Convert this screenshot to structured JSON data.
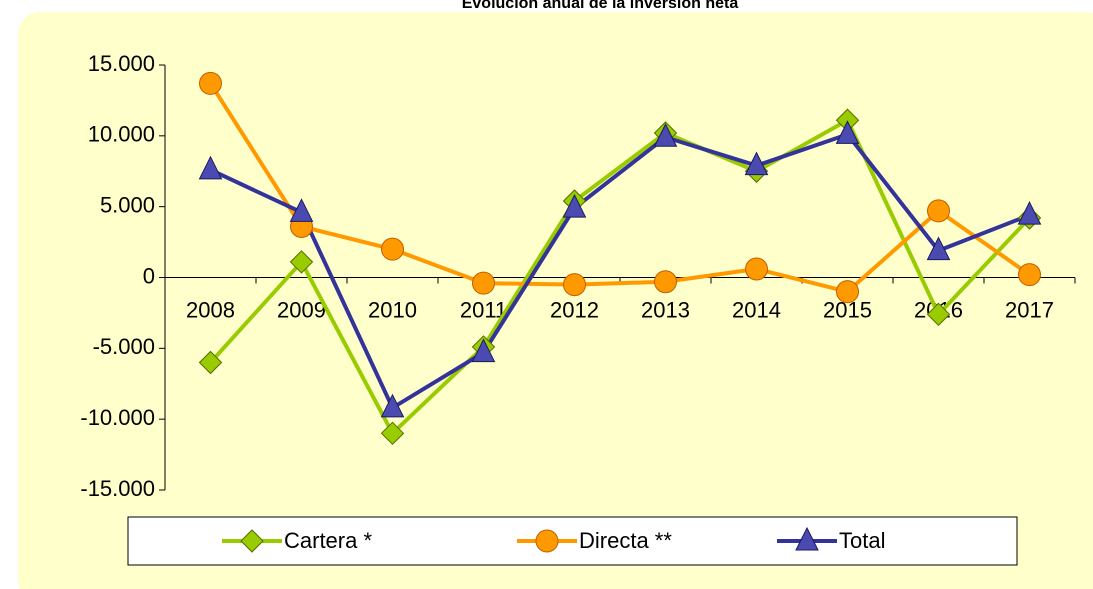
{
  "chart_data": {
    "type": "line",
    "title": "Evolución anual de la inversión neta",
    "categories": [
      "2008",
      "2009",
      "2010",
      "2011",
      "2012",
      "2013",
      "2014",
      "2015",
      "2016",
      "2017"
    ],
    "series": [
      {
        "name": "Cartera *",
        "color": "#99cc00",
        "marker": "diamond",
        "values": [
          -6000,
          1100,
          -11000,
          -4900,
          5400,
          10200,
          7500,
          11100,
          -2600,
          4200
        ]
      },
      {
        "name": "Directa **",
        "color": "#ff9900",
        "marker": "circle",
        "values": [
          13700,
          3600,
          2000,
          -400,
          -500,
          -300,
          600,
          -1000,
          4700,
          200
        ]
      },
      {
        "name": "Total",
        "color": "#333399",
        "marker": "triangle",
        "values": [
          7600,
          4600,
          -9200,
          -5300,
          4900,
          9900,
          7900,
          10100,
          1900,
          4400
        ]
      }
    ],
    "ylim": [
      -15000,
      15000
    ],
    "yticks": [
      {
        "value": -15000,
        "label": "-15.000"
      },
      {
        "value": -10000,
        "label": "-10.000"
      },
      {
        "value": -5000,
        "label": "-5.000"
      },
      0,
      {
        "value": 5000,
        "label": "5.000"
      },
      {
        "value": 10000,
        "label": "10.000"
      },
      {
        "value": 15000,
        "label": "15.000"
      }
    ],
    "legend": "bottom"
  }
}
